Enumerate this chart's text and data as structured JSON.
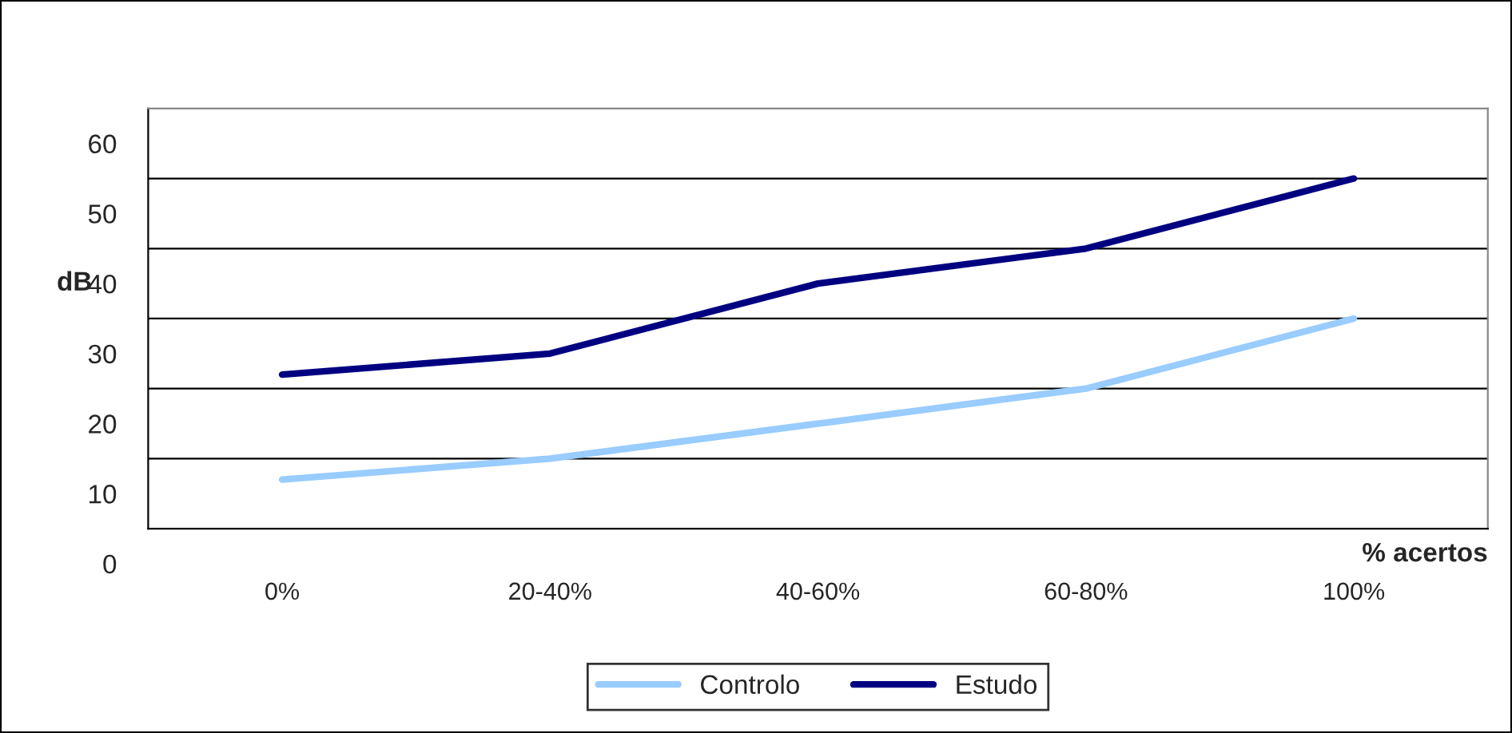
{
  "chart_data": {
    "type": "line",
    "categories": [
      "0%",
      "20-40%",
      "40-60%",
      "60-80%",
      "100%"
    ],
    "series": [
      {
        "name": "Controlo",
        "color": "#99ccff",
        "values": [
          12,
          15,
          20,
          25,
          35
        ]
      },
      {
        "name": "Estudo",
        "color": "#000080",
        "values": [
          27,
          30,
          40,
          45,
          55
        ]
      }
    ],
    "xlabel": "% acertos",
    "ylabel": "dB",
    "ylim": [
      0,
      65
    ],
    "yticks": [
      0,
      10,
      20,
      30,
      40,
      50,
      60,
      {
        "value": 5,
        "label": null
      },
      {
        "value": 15,
        "label": null
      },
      {
        "value": 25,
        "label": null
      },
      {
        "value": 35,
        "label": null
      },
      {
        "value": 45,
        "label": null
      },
      {
        "value": 55,
        "label": null
      },
      {
        "value": 65,
        "label": null
      }
    ],
    "grid": "y",
    "legend": "bottom",
    "marker": "none",
    "line_style": "solid"
  }
}
